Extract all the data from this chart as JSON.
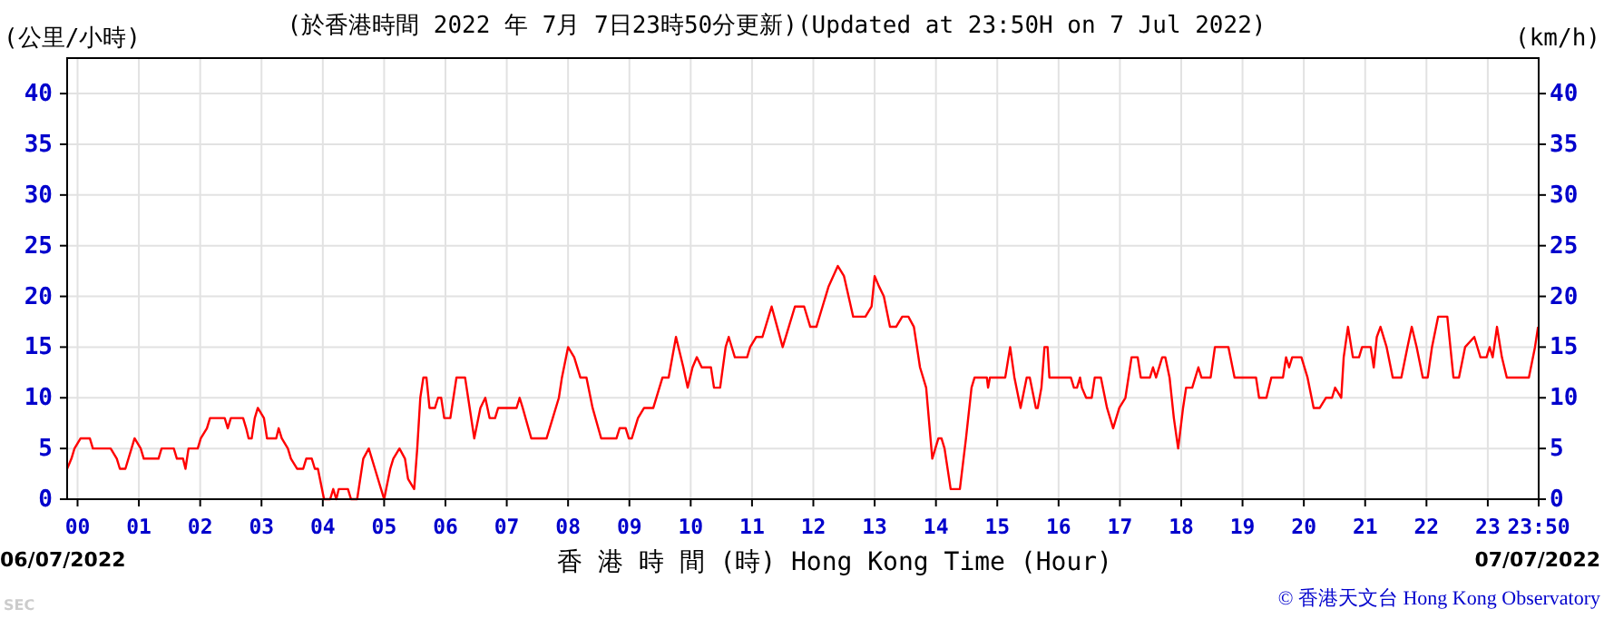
{
  "chart_data": {
    "type": "line",
    "title": "(於香港時間 2022 年 7月 7日23時50分更新)(Updated at 23:50H on 7 Jul 2022)",
    "ylabel": "(公里/小時)",
    "y2label": "(km/h)",
    "xlabel": "香 港 時 間 (時) Hong Kong Time (Hour)",
    "annotations": [
      "06/07/2022",
      "07/07/2022",
      "SEC",
      "© 香港天文台 Hong Kong Observatory"
    ],
    "xlim": [
      -0.17,
      23.83
    ],
    "xticks": [
      {
        "value": 0,
        "label": "00"
      },
      {
        "value": 1,
        "label": "01"
      },
      {
        "value": 2,
        "label": "02"
      },
      {
        "value": 3,
        "label": "03"
      },
      {
        "value": 4,
        "label": "04"
      },
      {
        "value": 5,
        "label": "05"
      },
      {
        "value": 6,
        "label": "06"
      },
      {
        "value": 7,
        "label": "07"
      },
      {
        "value": 8,
        "label": "08"
      },
      {
        "value": 9,
        "label": "09"
      },
      {
        "value": 10,
        "label": "10"
      },
      {
        "value": 11,
        "label": "11"
      },
      {
        "value": 12,
        "label": "12"
      },
      {
        "value": 13,
        "label": "13"
      },
      {
        "value": 14,
        "label": "14"
      },
      {
        "value": 15,
        "label": "15"
      },
      {
        "value": 16,
        "label": "16"
      },
      {
        "value": 17,
        "label": "17"
      },
      {
        "value": 18,
        "label": "18"
      },
      {
        "value": 19,
        "label": "19"
      },
      {
        "value": 20,
        "label": "20"
      },
      {
        "value": 21,
        "label": "21"
      },
      {
        "value": 22,
        "label": "22"
      },
      {
        "value": 23,
        "label": "23"
      },
      {
        "value": 23.83,
        "label": "23:50"
      }
    ],
    "ylim": [
      0,
      43.5
    ],
    "yticks": [
      0,
      5,
      10,
      15,
      20,
      25,
      30,
      35,
      40
    ],
    "y2lim": [
      0,
      43.5
    ],
    "y2ticks": [
      0,
      5,
      10,
      15,
      20,
      25,
      30,
      35,
      40
    ],
    "grid": true,
    "marker": "none",
    "line_style": "solid",
    "series": [
      {
        "color": "#ff0000",
        "x": [
          -0.17,
          -0.1,
          -0.05,
          0.05,
          0.2,
          0.25,
          0.54,
          0.64,
          0.69,
          0.78,
          0.88,
          0.93,
          1.03,
          1.08,
          1.32,
          1.37,
          1.57,
          1.62,
          1.72,
          1.76,
          1.81,
          1.96,
          2.01,
          2.11,
          2.16,
          2.4,
          2.45,
          2.5,
          2.7,
          2.75,
          2.79,
          2.84,
          2.89,
          2.94,
          3.04,
          3.09,
          3.24,
          3.28,
          3.33,
          3.43,
          3.48,
          3.58,
          3.68,
          3.73,
          3.82,
          3.87,
          3.92,
          4.02,
          4.12,
          4.17,
          4.22,
          4.26,
          4.41,
          4.46,
          4.56,
          4.66,
          4.75,
          4.85,
          4.95,
          5.0,
          5.1,
          5.15,
          5.25,
          5.34,
          5.39,
          5.49,
          5.54,
          5.59,
          5.64,
          5.69,
          5.74,
          5.83,
          5.88,
          5.93,
          5.98,
          6.08,
          6.13,
          6.18,
          6.32,
          6.37,
          6.47,
          6.57,
          6.65,
          6.72,
          6.81,
          6.86,
          7.16,
          7.21,
          7.26,
          7.4,
          7.65,
          7.75,
          7.85,
          7.9,
          8.0,
          8.1,
          8.2,
          8.3,
          8.4,
          8.54,
          8.79,
          8.84,
          8.94,
          8.99,
          9.04,
          9.14,
          9.24,
          9.39,
          9.54,
          9.64,
          9.76,
          9.88,
          9.95,
          10.03,
          10.1,
          10.18,
          10.33,
          10.38,
          10.48,
          10.57,
          10.62,
          10.72,
          10.92,
          10.97,
          11.07,
          11.17,
          11.27,
          11.32,
          11.41,
          11.5,
          11.6,
          11.7,
          11.85,
          11.95,
          12.05,
          12.15,
          12.2,
          12.25,
          12.4,
          12.5,
          12.65,
          12.85,
          12.95,
          13.0,
          13.07,
          13.15,
          13.25,
          13.35,
          13.45,
          13.55,
          13.64,
          13.74,
          13.84,
          13.94,
          14.04,
          14.09,
          14.14,
          14.24,
          14.39,
          14.49,
          14.58,
          14.63,
          14.83,
          14.85,
          14.88,
          15.13,
          15.21,
          15.28,
          15.38,
          15.48,
          15.53,
          15.63,
          15.66,
          15.72,
          15.77,
          15.82,
          15.85,
          16.0,
          16.2,
          16.25,
          16.3,
          16.35,
          16.38,
          16.45,
          16.54,
          16.59,
          16.69,
          16.79,
          16.89,
          16.99,
          17.09,
          17.19,
          17.29,
          17.34,
          17.49,
          17.54,
          17.59,
          17.69,
          17.74,
          17.81,
          17.88,
          17.95,
          18.03,
          18.08,
          18.18,
          18.28,
          18.33,
          18.48,
          18.55,
          18.77,
          18.87,
          19.22,
          19.27,
          19.39,
          19.47,
          19.66,
          19.71,
          19.76,
          19.81,
          19.96,
          20.06,
          20.16,
          20.26,
          20.36,
          20.46,
          20.51,
          20.61,
          20.65,
          20.72,
          20.8,
          20.9,
          20.95,
          21.09,
          21.14,
          21.19,
          21.25,
          21.35,
          21.45,
          21.59,
          21.69,
          21.76,
          21.84,
          21.94,
          22.02,
          22.09,
          22.19,
          22.34,
          22.44,
          22.53,
          22.63,
          22.78,
          22.88,
          22.98,
          23.03,
          23.08,
          23.15,
          23.23,
          23.31,
          23.67,
          23.77,
          23.82
        ],
        "values": [
          3,
          4,
          5,
          6,
          6,
          5,
          5,
          4,
          3,
          3,
          5,
          6,
          5,
          4,
          4,
          5,
          5,
          4,
          4,
          3,
          5,
          5,
          6,
          7,
          8,
          8,
          7,
          8,
          8,
          7,
          6,
          6,
          8,
          9,
          8,
          6,
          6,
          7,
          6,
          5,
          4,
          3,
          3,
          4,
          4,
          3,
          3,
          0,
          0,
          1,
          0,
          1,
          1,
          0,
          0,
          4,
          5,
          3,
          1,
          0,
          3,
          4,
          5,
          4,
          2,
          1,
          5,
          10,
          12,
          12,
          9,
          9,
          10,
          10,
          8,
          8,
          10,
          12,
          12,
          10,
          6,
          9,
          10,
          8,
          8,
          9,
          9,
          10,
          9,
          6,
          6,
          8,
          10,
          12,
          15,
          14,
          12,
          12,
          9,
          6,
          6,
          7,
          7,
          6,
          6,
          8,
          9,
          9,
          12,
          12,
          16,
          13,
          11,
          13,
          14,
          13,
          13,
          11,
          11,
          15,
          16,
          14,
          14,
          15,
          16,
          16,
          18,
          19,
          17,
          15,
          17,
          19,
          19,
          17,
          17,
          19,
          20,
          21,
          23,
          22,
          18,
          18,
          19,
          22,
          21,
          20,
          17,
          17,
          18,
          18,
          17,
          13,
          11,
          4,
          6,
          6,
          5,
          1,
          1,
          6,
          11,
          12,
          12,
          11,
          12,
          12,
          15,
          12,
          9,
          12,
          12,
          9,
          9,
          11,
          15,
          15,
          12,
          12,
          12,
          11,
          11,
          12,
          11,
          10,
          10,
          12,
          12,
          9,
          7,
          9,
          10,
          14,
          14,
          12,
          12,
          13,
          12,
          14,
          14,
          12,
          8,
          5,
          9,
          11,
          11,
          13,
          12,
          12,
          15,
          15,
          12,
          12,
          10,
          10,
          12,
          12,
          14,
          13,
          14,
          14,
          12,
          9,
          9,
          10,
          10,
          11,
          10,
          14,
          17,
          14,
          14,
          15,
          15,
          13,
          16,
          17,
          15,
          12,
          12,
          15,
          17,
          15,
          12,
          12,
          15,
          18,
          18,
          12,
          12,
          15,
          16,
          14,
          14,
          15,
          14,
          17,
          14,
          12,
          12,
          15,
          17
        ]
      }
    ]
  }
}
